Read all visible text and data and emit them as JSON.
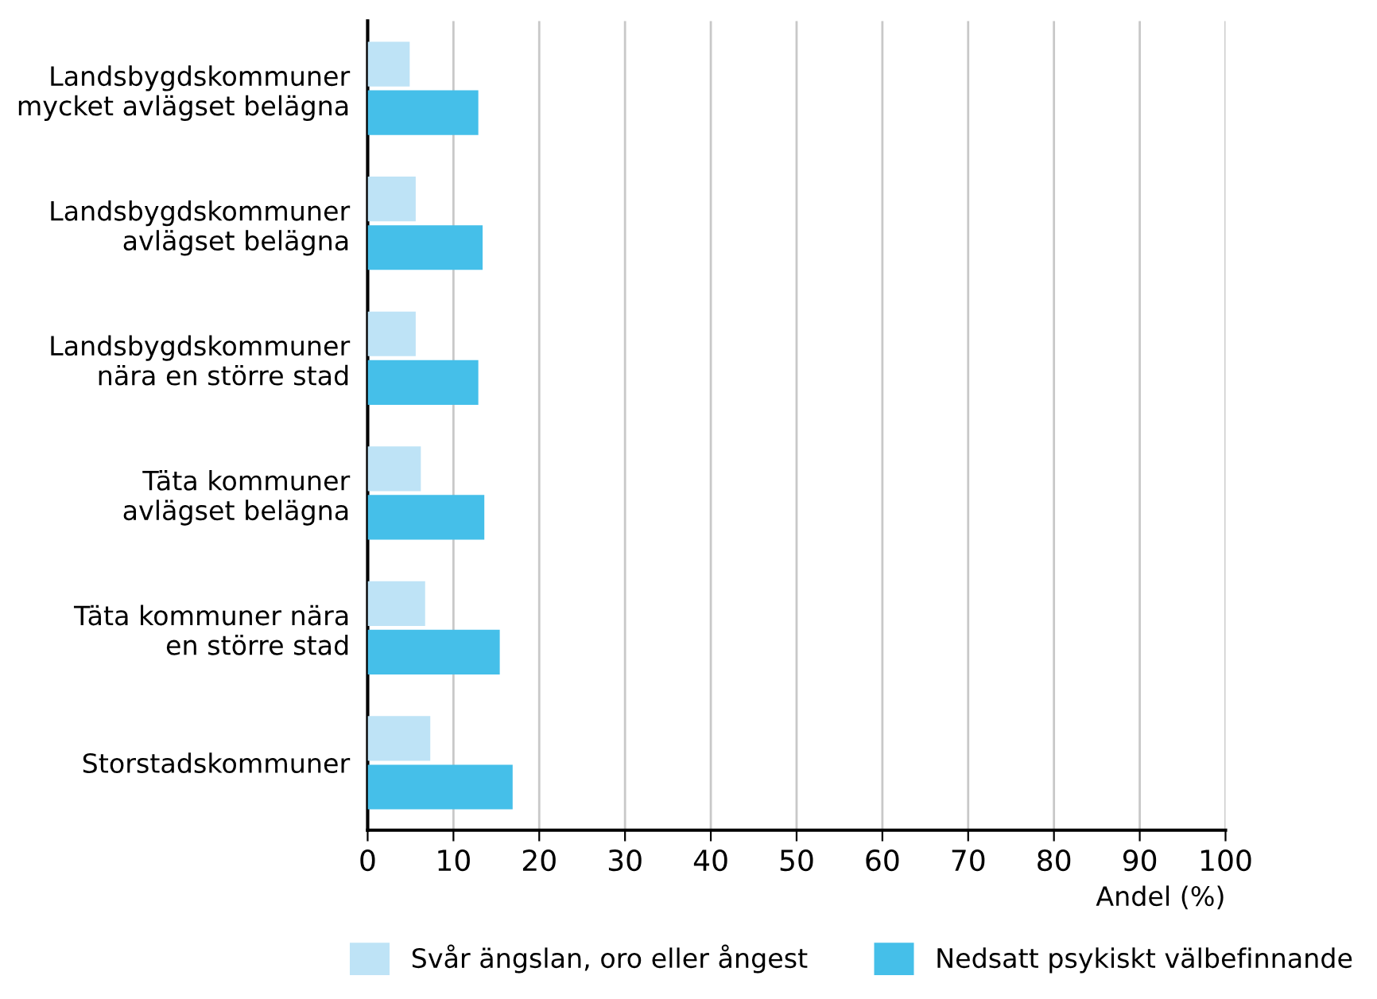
{
  "chart_data": {
    "type": "bar",
    "orientation": "horizontal",
    "xlabel": "Andel (%)",
    "categories": [
      "Landsbygdskommuner\nmycket avlägset belägna",
      "Landsbygdskommuner\navlägset belägna",
      "Landsbygdskommuner\nnära en större stad",
      "Täta kommuner\navlägset belägna",
      "Täta kommuner nära\nen större stad",
      "Storstadskommuner"
    ],
    "series": [
      {
        "name": "Svår ängslan, oro eller ångest",
        "color": "#bee3f6",
        "values": [
          4.9,
          5.6,
          5.6,
          6.2,
          6.7,
          7.3
        ]
      },
      {
        "name": "Nedsatt psykiskt välbefinnande",
        "color": "#45bfe9",
        "values": [
          12.9,
          13.4,
          12.9,
          13.6,
          15.4,
          16.9
        ]
      }
    ],
    "xlim": [
      0,
      100
    ],
    "xticks": [
      0,
      10,
      20,
      30,
      40,
      50,
      60,
      70,
      80,
      90,
      100
    ],
    "grid": "x",
    "legend": "bottom"
  }
}
